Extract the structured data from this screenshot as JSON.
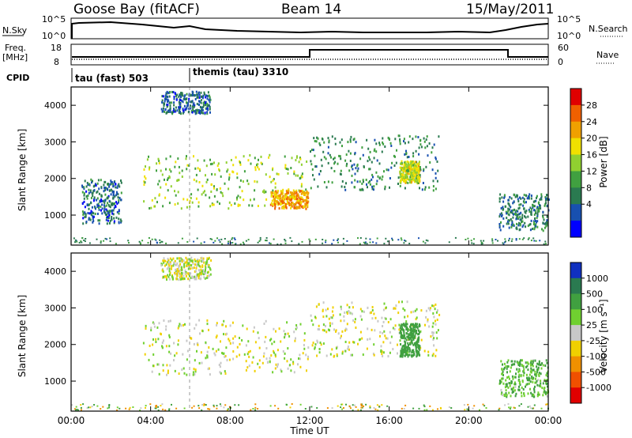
{
  "header": {
    "station": "Goose Bay (fitACF)",
    "beam": "Beam 14",
    "date": "15/May/2011"
  },
  "status_panels": {
    "nsky_label": "N.Sky",
    "nsky_ticks": [
      "10^5",
      "10^0"
    ],
    "nsearch_label": "N.Search",
    "nsearch_ticks": [
      "10^5",
      "10^0"
    ],
    "freq_label": "Freq.",
    "freq_unit": "[MHz]",
    "freq_ticks": [
      "18",
      "8"
    ],
    "nave_label": "Nave",
    "nave_ticks": [
      "60",
      "0"
    ],
    "cpid_label": "CPID",
    "cpid_modes": [
      "tau (fast) 503",
      "themis (tau) 3310"
    ]
  },
  "axes": {
    "y_label": "Slant Range [km]",
    "y_ticks": [
      "4000",
      "3000",
      "2000",
      "1000"
    ],
    "x_label": "Time UT",
    "x_ticks": [
      "00:00",
      "04:00",
      "08:00",
      "12:00",
      "16:00",
      "20:00",
      "00:00"
    ]
  },
  "power_scale": {
    "label": "Power [dB]",
    "ticks": [
      "28",
      "24",
      "20",
      "16",
      "12",
      "8",
      "4"
    ],
    "colors": [
      "#e00000",
      "#f06000",
      "#f0a000",
      "#f0e000",
      "#90d030",
      "#40a040",
      "#2a7a50",
      "#1850b0",
      "#0000ff"
    ]
  },
  "velocity_scale": {
    "label": "Velocity [m s⁻¹]",
    "ticks": [
      "1000",
      "500",
      "100",
      "25",
      "-25",
      "-100",
      "-500",
      "-1000"
    ],
    "colors": [
      "#1030c0",
      "#2a7a50",
      "#40a040",
      "#70d030",
      "#c8c8c8",
      "#f0d000",
      "#f09000",
      "#f05000",
      "#e00000"
    ]
  },
  "chart_data": [
    {
      "type": "heatmap",
      "title": "Power",
      "ylabel": "Slant Range [km]",
      "xlabel": "Time UT",
      "xlim": [
        0,
        24
      ],
      "ylim": [
        180,
        4500
      ],
      "clim": [
        0,
        32
      ],
      "regions": [
        {
          "t": [
            3.6,
            11.9
          ],
          "r": [
            1200,
            2700
          ],
          "level": 16
        },
        {
          "t": [
            12.0,
            18.5
          ],
          "r": [
            1700,
            3200
          ],
          "level": 9
        },
        {
          "t": [
            16.5,
            17.5
          ],
          "r": [
            1900,
            2500
          ],
          "level": 18
        },
        {
          "t": [
            10.0,
            11.9
          ],
          "r": [
            1200,
            1700
          ],
          "level": 24
        },
        {
          "t": [
            0.5,
            2.5
          ],
          "r": [
            800,
            2000
          ],
          "level": 6
        },
        {
          "t": [
            4.5,
            7.0
          ],
          "r": [
            3800,
            4400
          ],
          "level": 6
        },
        {
          "t": [
            21.5,
            24.0
          ],
          "r": [
            600,
            1600
          ],
          "level": 8
        }
      ]
    },
    {
      "type": "heatmap",
      "title": "Velocity",
      "ylabel": "Slant Range [km]",
      "xlabel": "Time UT",
      "xlim": [
        0,
        24
      ],
      "ylim": [
        180,
        4500
      ],
      "clim": [
        -1000,
        1000
      ],
      "regions": [
        {
          "t": [
            3.6,
            11.9
          ],
          "r": [
            1200,
            2700
          ],
          "level": 0
        },
        {
          "t": [
            12.0,
            18.5
          ],
          "r": [
            1700,
            3200
          ],
          "level": 0
        },
        {
          "t": [
            16.5,
            17.5
          ],
          "r": [
            1700,
            2600
          ],
          "level": 300
        },
        {
          "t": [
            4.5,
            7.0
          ],
          "r": [
            3800,
            4400
          ],
          "level": 0
        },
        {
          "t": [
            21.5,
            24.0
          ],
          "r": [
            600,
            1600
          ],
          "level": 100
        }
      ]
    }
  ]
}
